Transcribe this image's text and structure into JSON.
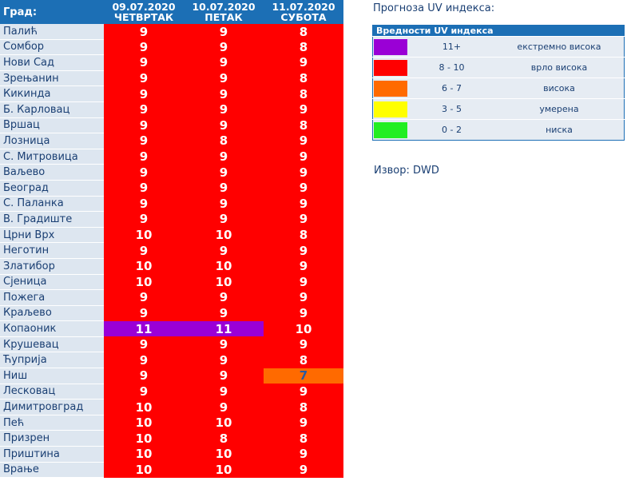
{
  "table": {
    "city_header": "Град:",
    "days": [
      {
        "date": "09.07.2020",
        "weekday": "ЧЕТВРТАК"
      },
      {
        "date": "10.07.2020",
        "weekday": "ПЕТАК"
      },
      {
        "date": "11.07.2020",
        "weekday": "СУБОТА"
      }
    ],
    "rows": [
      {
        "city": "Палић",
        "values": [
          "9",
          "9",
          "8"
        ],
        "levels": [
          "red",
          "red",
          "red"
        ]
      },
      {
        "city": "Сомбор",
        "values": [
          "9",
          "9",
          "8"
        ],
        "levels": [
          "red",
          "red",
          "red"
        ]
      },
      {
        "city": "Нови Сад",
        "values": [
          "9",
          "9",
          "9"
        ],
        "levels": [
          "red",
          "red",
          "red"
        ]
      },
      {
        "city": "Зрењанин",
        "values": [
          "9",
          "9",
          "8"
        ],
        "levels": [
          "red",
          "red",
          "red"
        ]
      },
      {
        "city": "Кикинда",
        "values": [
          "9",
          "9",
          "8"
        ],
        "levels": [
          "red",
          "red",
          "red"
        ]
      },
      {
        "city": "Б. Карловац",
        "values": [
          "9",
          "9",
          "9"
        ],
        "levels": [
          "red",
          "red",
          "red"
        ]
      },
      {
        "city": "Вршац",
        "values": [
          "9",
          "9",
          "8"
        ],
        "levels": [
          "red",
          "red",
          "red"
        ]
      },
      {
        "city": "Лозница",
        "values": [
          "9",
          "8",
          "9"
        ],
        "levels": [
          "red",
          "red",
          "red"
        ]
      },
      {
        "city": "С. Митровица",
        "values": [
          "9",
          "9",
          "9"
        ],
        "levels": [
          "red",
          "red",
          "red"
        ]
      },
      {
        "city": "Ваљево",
        "values": [
          "9",
          "9",
          "9"
        ],
        "levels": [
          "red",
          "red",
          "red"
        ]
      },
      {
        "city": "Београд",
        "values": [
          "9",
          "9",
          "9"
        ],
        "levels": [
          "red",
          "red",
          "red"
        ]
      },
      {
        "city": "С. Паланка",
        "values": [
          "9",
          "9",
          "9"
        ],
        "levels": [
          "red",
          "red",
          "red"
        ]
      },
      {
        "city": "В. Градиште",
        "values": [
          "9",
          "9",
          "9"
        ],
        "levels": [
          "red",
          "red",
          "red"
        ]
      },
      {
        "city": "Црни Врх",
        "values": [
          "10",
          "10",
          "8"
        ],
        "levels": [
          "red",
          "red",
          "red"
        ]
      },
      {
        "city": "Неготин",
        "values": [
          "9",
          "9",
          "9"
        ],
        "levels": [
          "red",
          "red",
          "red"
        ]
      },
      {
        "city": "Златибор",
        "values": [
          "10",
          "10",
          "9"
        ],
        "levels": [
          "red",
          "red",
          "red"
        ]
      },
      {
        "city": "Сјеница",
        "values": [
          "10",
          "10",
          "9"
        ],
        "levels": [
          "red",
          "red",
          "red"
        ]
      },
      {
        "city": "Пожега",
        "values": [
          "9",
          "9",
          "9"
        ],
        "levels": [
          "red",
          "red",
          "red"
        ]
      },
      {
        "city": "Краљево",
        "values": [
          "9",
          "9",
          "9"
        ],
        "levels": [
          "red",
          "red",
          "red"
        ]
      },
      {
        "city": "Копаоник",
        "values": [
          "11",
          "11",
          "10"
        ],
        "levels": [
          "purple",
          "purple",
          "red"
        ]
      },
      {
        "city": "Крушевац",
        "values": [
          "9",
          "9",
          "9"
        ],
        "levels": [
          "red",
          "red",
          "red"
        ]
      },
      {
        "city": "Ћуприја",
        "values": [
          "9",
          "9",
          "8"
        ],
        "levels": [
          "red",
          "red",
          "red"
        ]
      },
      {
        "city": "Ниш",
        "values": [
          "9",
          "9",
          "7"
        ],
        "levels": [
          "red",
          "red",
          "orange"
        ]
      },
      {
        "city": "Лесковац",
        "values": [
          "9",
          "9",
          "9"
        ],
        "levels": [
          "red",
          "red",
          "red"
        ]
      },
      {
        "city": "Димитровград",
        "values": [
          "10",
          "9",
          "8"
        ],
        "levels": [
          "red",
          "red",
          "red"
        ]
      },
      {
        "city": "Пећ",
        "values": [
          "10",
          "10",
          "9"
        ],
        "levels": [
          "red",
          "red",
          "red"
        ]
      },
      {
        "city": "Призрен",
        "values": [
          "10",
          "8",
          "8"
        ],
        "levels": [
          "red",
          "red",
          "red"
        ]
      },
      {
        "city": "Приштина",
        "values": [
          "10",
          "10",
          "9"
        ],
        "levels": [
          "red",
          "red",
          "red"
        ]
      },
      {
        "city": "Врање",
        "values": [
          "10",
          "10",
          "9"
        ],
        "levels": [
          "red",
          "red",
          "red"
        ]
      }
    ]
  },
  "legend": {
    "title": "Прогноза UV индекса:",
    "header": "Вредности UV индекса",
    "items": [
      {
        "range": "11+",
        "label": "екстремно висока",
        "color": "#9a00d6"
      },
      {
        "range": "8 - 10",
        "label": "врло висока",
        "color": "#ff0000"
      },
      {
        "range": "6 - 7",
        "label": "висока",
        "color": "#ff6a00"
      },
      {
        "range": "3 - 5",
        "label": "умерена",
        "color": "#ffff00"
      },
      {
        "range": "0 - 2",
        "label": "ниска",
        "color": "#22ee22"
      }
    ]
  },
  "source": "Извор: DWD"
}
